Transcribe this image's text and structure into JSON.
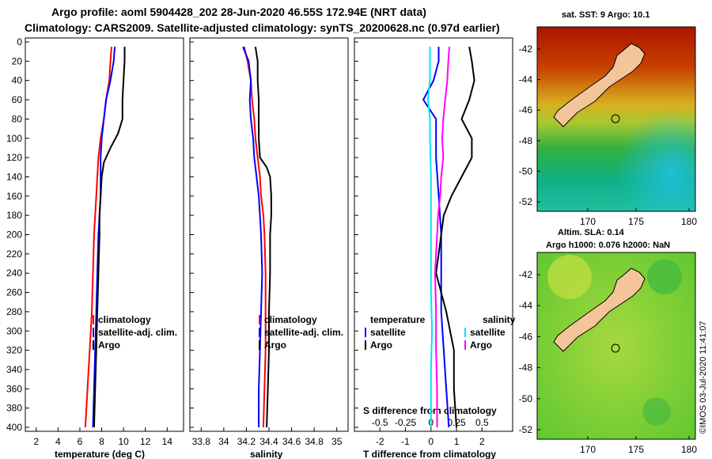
{
  "title": {
    "line1": "Argo profile: aoml 5904428_202 28-Jun-2020 46.55S 172.94E (NRT data)",
    "line2": "Climatology: CARS2009. Satellite-adjusted climatology: synTS_20200628.nc (0.97d earlier)"
  },
  "depth_ticks": [
    "0",
    "20",
    "40",
    "60",
    "80",
    "100",
    "120",
    "140",
    "160",
    "180",
    "200",
    "220",
    "240",
    "260",
    "280",
    "300",
    "320",
    "340",
    "360",
    "380",
    "400"
  ],
  "colors": {
    "climatology": "#ff0000",
    "satellite": "#0000ff",
    "argo": "#000000",
    "t_diff_sat": "#00e5ee",
    "s_diff_sat": "#ff00ff"
  },
  "chart_data": [
    {
      "type": "line",
      "xlabel": "temperature (deg C)",
      "ylabel": "depth",
      "xlim": [
        1,
        15.5
      ],
      "ylim": [
        400,
        0
      ],
      "xticks": [
        2,
        4,
        6,
        8,
        10,
        12,
        14
      ],
      "xtick_labels": [
        "2",
        "4",
        "6",
        "8",
        "10",
        "12",
        "14"
      ],
      "legend": [
        "climatology",
        "satellite-adj. clim.",
        "Argo"
      ],
      "series": [
        {
          "name": "climatology",
          "depth": [
            5,
            20,
            40,
            60,
            80,
            100,
            120,
            140,
            160,
            180,
            200,
            240,
            280,
            320,
            360,
            400
          ],
          "values": [
            8.9,
            8.8,
            8.7,
            8.4,
            8.2,
            7.9,
            7.7,
            7.6,
            7.5,
            7.4,
            7.3,
            7.2,
            7.1,
            6.9,
            6.7,
            6.5
          ]
        },
        {
          "name": "satellite-adj. clim.",
          "depth": [
            5,
            20,
            40,
            60,
            80,
            100,
            120,
            140,
            160,
            180,
            200,
            240,
            280,
            320,
            360,
            400
          ],
          "values": [
            9.2,
            9.1,
            8.8,
            8.4,
            8.2,
            8.0,
            7.9,
            7.9,
            7.9,
            7.8,
            7.7,
            7.6,
            7.5,
            7.4,
            7.3,
            7.2
          ]
        },
        {
          "name": "Argo",
          "depth": [
            5,
            20,
            40,
            60,
            80,
            95,
            110,
            125,
            140,
            160,
            180,
            200,
            240,
            280,
            320,
            360,
            400
          ],
          "values": [
            10.1,
            10.1,
            10.0,
            9.9,
            9.9,
            9.5,
            8.8,
            8.2,
            8.0,
            7.9,
            7.8,
            7.8,
            7.7,
            7.6,
            7.5,
            7.4,
            7.3
          ]
        }
      ]
    },
    {
      "type": "line",
      "xlabel": "salinity",
      "ylabel": "depth",
      "xlim": [
        33.7,
        35.1
      ],
      "ylim": [
        400,
        0
      ],
      "xticks": [
        33.8,
        34,
        34.2,
        34.4,
        34.6,
        34.8,
        35
      ],
      "xtick_labels": [
        "33.8",
        "34",
        "34.2",
        "34.4",
        "34.6",
        "34.8",
        "35"
      ],
      "legend": [
        "climatology",
        "satellite-adj. clim.",
        "Argo"
      ],
      "series": [
        {
          "name": "climatology",
          "depth": [
            5,
            20,
            40,
            60,
            80,
            100,
            120,
            140,
            160,
            180,
            200,
            240,
            280,
            320,
            360,
            400
          ],
          "values": [
            34.18,
            34.21,
            34.24,
            34.25,
            34.27,
            34.28,
            34.3,
            34.32,
            34.33,
            34.35,
            34.36,
            34.37,
            34.37,
            34.37,
            34.36,
            34.35
          ]
        },
        {
          "name": "satellite-adj. clim.",
          "depth": [
            5,
            20,
            40,
            60,
            80,
            100,
            120,
            140,
            160,
            180,
            200,
            240,
            280,
            320,
            360,
            400
          ],
          "values": [
            34.17,
            34.22,
            34.24,
            34.23,
            34.24,
            34.26,
            34.27,
            34.29,
            34.31,
            34.32,
            34.33,
            34.34,
            34.33,
            34.32,
            34.31,
            34.31
          ]
        },
        {
          "name": "Argo",
          "depth": [
            5,
            20,
            40,
            60,
            80,
            100,
            120,
            130,
            140,
            160,
            180,
            200,
            240,
            280,
            320,
            360,
            400
          ],
          "values": [
            34.28,
            34.3,
            34.3,
            34.31,
            34.31,
            34.31,
            34.32,
            34.38,
            34.41,
            34.42,
            34.42,
            34.41,
            34.41,
            34.4,
            34.4,
            34.39,
            34.38
          ]
        }
      ]
    },
    {
      "type": "line",
      "xlabel": "T difference from climatology",
      "x2label": "S difference from climatology",
      "ylabel": "depth",
      "xlim": [
        -3,
        3.2
      ],
      "ylim": [
        400,
        0
      ],
      "xticks": [
        -2,
        -1,
        0,
        1,
        2
      ],
      "xtick_labels": [
        "-2",
        "-1",
        "0",
        "1",
        "2"
      ],
      "x2ticks": [
        -0.5,
        -0.25,
        0,
        0.25,
        0.5
      ],
      "x2tick_labels": [
        "-0.5",
        "-0.25",
        "0",
        "0.25",
        "0.5"
      ],
      "x2lim": [
        -0.75,
        0.8
      ],
      "legend_title_t": "temperature",
      "legend_title_s": "salinity",
      "legend": [
        "satellite",
        "Argo",
        "satellite",
        "Argo"
      ],
      "series": [
        {
          "name": "T satellite",
          "axis": "T",
          "depth": [
            5,
            20,
            40,
            60,
            80,
            100,
            120,
            160,
            200,
            240,
            280,
            320,
            360,
            400
          ],
          "values": [
            0.3,
            0.3,
            0.1,
            -0.3,
            0.2,
            0.2,
            0.2,
            0.3,
            0.4,
            0.4,
            0.4,
            0.5,
            0.6,
            0.7
          ]
        },
        {
          "name": "T Argo",
          "axis": "T",
          "depth": [
            5,
            20,
            40,
            60,
            80,
            100,
            120,
            140,
            160,
            180,
            200,
            240,
            280,
            320,
            360,
            400
          ],
          "values": [
            1.5,
            1.6,
            1.7,
            1.5,
            1.2,
            1.6,
            1.6,
            1.2,
            0.8,
            0.5,
            0.4,
            0.2,
            0.6,
            0.9,
            0.9,
            1.0
          ]
        },
        {
          "name": "S satellite",
          "axis": "S",
          "depth": [
            5,
            20,
            40,
            60,
            80,
            100,
            140,
            180,
            220,
            260,
            300,
            340,
            380,
            400
          ],
          "values": [
            -0.01,
            -0.01,
            -0.01,
            -0.03,
            -0.01,
            -0.01,
            0.0,
            0.0,
            0.0,
            0.0,
            0.01,
            0.0,
            0.0,
            0.0
          ]
        },
        {
          "name": "S Argo",
          "axis": "S",
          "depth": [
            5,
            20,
            40,
            60,
            80,
            100,
            120,
            140,
            160,
            180,
            200,
            240,
            280,
            320,
            360,
            400
          ],
          "values": [
            0.18,
            0.17,
            0.16,
            0.14,
            0.12,
            0.11,
            0.12,
            0.1,
            0.09,
            0.07,
            0.06,
            0.04,
            0.05,
            0.05,
            0.06,
            0.06
          ]
        }
      ]
    }
  ],
  "map_top": {
    "title": "sat. SST: 9 Argo: 10.1",
    "yticks": [
      "-42",
      "-44",
      "-46",
      "-48",
      "-50",
      "-52"
    ],
    "xticks": [
      "170",
      "175",
      "180"
    ]
  },
  "map_bottom": {
    "title1": "Altim. SLA: 0.14",
    "title2": "Argo h1000: 0.076 h2000: NaN",
    "yticks": [
      "-42",
      "-44",
      "-46",
      "-48",
      "-50",
      "-52"
    ],
    "xticks": [
      "170",
      "175",
      "180"
    ]
  },
  "credit": "©IMOS 03-Jul-2020 11:41:07"
}
